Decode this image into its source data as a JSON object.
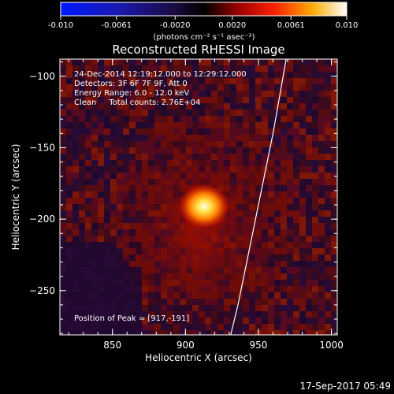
{
  "chart_data": {
    "type": "heatmap",
    "title": "Reconstructed RHESSI Image",
    "xlabel": "Heliocentric X (arcsec)",
    "ylabel": "Heliocentric Y (arcsec)",
    "xlim": [
      814,
      1004
    ],
    "ylim": [
      -281,
      -88
    ],
    "xticks": [
      850,
      900,
      950,
      1000
    ],
    "yticks": [
      -100,
      -150,
      -200,
      -250
    ],
    "grid": false,
    "colorbar": {
      "min": -0.01,
      "max": 0.01,
      "tick_labels": [
        "-0.010",
        "-0.0061",
        "-0.0020",
        "0.0020",
        "0.0061",
        "0.010"
      ],
      "unit_label": "(photons cm⁻² s⁻¹ asec⁻²)",
      "colormap": "blue-black-red-yellow-white"
    },
    "annotations": [
      "24-Dec-2014 12:19:12.000 to 12:29:12.000",
      "Detectors: 3F 6F 7F 9F, Att 0",
      "Energy Range: 6.0 - 12.0 keV",
      "Clean     Total counts: 2.76E+04",
      "Position of Peak = [917,-191]"
    ],
    "peak": {
      "x": 917,
      "y": -191
    },
    "limb_curve": [
      [
        969,
        -88
      ],
      [
        960,
        -140
      ],
      [
        948,
        -200
      ],
      [
        936,
        -260
      ],
      [
        931,
        -281
      ]
    ],
    "timestamp": "17-Sep-2017 05:49"
  }
}
